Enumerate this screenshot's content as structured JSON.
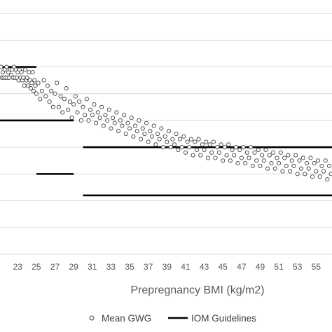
{
  "chart_data": {
    "type": "scatter",
    "xlabel": "Prepregnancy BMI (kg/m2)",
    "ylabel": "",
    "xlim": [
      21.1,
      56.7
    ],
    "ylim": [
      0,
      9.5
    ],
    "x_ticks": [
      23,
      25,
      27,
      29,
      31,
      33,
      35,
      37,
      39,
      41,
      43,
      45,
      47,
      49,
      51,
      53,
      55
    ],
    "y_gridlines": [
      1,
      2,
      3,
      4,
      5,
      6,
      7,
      8,
      9
    ],
    "grid": true,
    "legend_position": "bottom",
    "legend": [
      {
        "label": "Mean GWG",
        "marker": "open-circle"
      },
      {
        "label": "IOM Guidelines",
        "marker": "line"
      }
    ],
    "series": [
      {
        "name": "Mean GWG",
        "type": "scatter",
        "color": "#404040",
        "points": [
          [
            21.2,
            7.0
          ],
          [
            21.3,
            6.6
          ],
          [
            21.4,
            6.8
          ],
          [
            21.5,
            6.6
          ],
          [
            21.6,
            6.9
          ],
          [
            21.7,
            6.6
          ],
          [
            21.8,
            7.0
          ],
          [
            21.9,
            6.6
          ],
          [
            22.0,
            6.8
          ],
          [
            22.1,
            6.6
          ],
          [
            22.2,
            6.9
          ],
          [
            22.3,
            6.7
          ],
          [
            22.4,
            6.9
          ],
          [
            22.5,
            6.6
          ],
          [
            22.6,
            7.0
          ],
          [
            22.7,
            6.6
          ],
          [
            22.8,
            6.9
          ],
          [
            22.9,
            6.6
          ],
          [
            23.0,
            6.8
          ],
          [
            23.1,
            6.5
          ],
          [
            23.2,
            6.9
          ],
          [
            23.3,
            6.6
          ],
          [
            23.4,
            6.8
          ],
          [
            23.5,
            6.5
          ],
          [
            23.6,
            6.6
          ],
          [
            23.7,
            6.3
          ],
          [
            23.8,
            6.9
          ],
          [
            23.9,
            6.5
          ],
          [
            24.0,
            6.6
          ],
          [
            24.1,
            6.3
          ],
          [
            24.2,
            6.8
          ],
          [
            24.3,
            6.5
          ],
          [
            24.4,
            6.2
          ],
          [
            24.5,
            6.4
          ],
          [
            24.6,
            6.8
          ],
          [
            24.7,
            6.1
          ],
          [
            24.8,
            6.5
          ],
          [
            24.9,
            6.3
          ],
          [
            25.0,
            6.0
          ],
          [
            25.2,
            6.4
          ],
          [
            25.4,
            5.8
          ],
          [
            25.6,
            6.1
          ],
          [
            25.8,
            6.5
          ],
          [
            26.0,
            5.9
          ],
          [
            26.2,
            6.3
          ],
          [
            26.4,
            5.7
          ],
          [
            26.6,
            6.1
          ],
          [
            26.8,
            5.5
          ],
          [
            27.0,
            6.0
          ],
          [
            27.2,
            6.4
          ],
          [
            27.4,
            5.5
          ],
          [
            27.6,
            5.9
          ],
          [
            27.8,
            5.3
          ],
          [
            28.0,
            5.8
          ],
          [
            28.2,
            6.2
          ],
          [
            28.4,
            5.4
          ],
          [
            28.6,
            5.7
          ],
          [
            28.8,
            5.1
          ],
          [
            29.0,
            5.6
          ],
          [
            29.2,
            5.9
          ],
          [
            29.4,
            5.3
          ],
          [
            29.6,
            5.7
          ],
          [
            29.8,
            5.0
          ],
          [
            30.0,
            5.5
          ],
          [
            30.2,
            5.2
          ],
          [
            30.4,
            5.8
          ],
          [
            30.6,
            5.0
          ],
          [
            30.8,
            5.4
          ],
          [
            31.0,
            5.2
          ],
          [
            31.2,
            5.6
          ],
          [
            31.4,
            4.9
          ],
          [
            31.6,
            5.3
          ],
          [
            31.8,
            5.1
          ],
          [
            32.0,
            5.5
          ],
          [
            32.2,
            4.8
          ],
          [
            32.4,
            5.2
          ],
          [
            32.6,
            5.0
          ],
          [
            32.8,
            5.4
          ],
          [
            33.0,
            4.7
          ],
          [
            33.2,
            5.1
          ],
          [
            33.4,
            4.9
          ],
          [
            33.6,
            5.3
          ],
          [
            33.8,
            4.6
          ],
          [
            34.0,
            5.0
          ],
          [
            34.2,
            4.8
          ],
          [
            34.4,
            5.2
          ],
          [
            34.6,
            4.5
          ],
          [
            34.8,
            4.9
          ],
          [
            35.0,
            4.7
          ],
          [
            35.2,
            5.1
          ],
          [
            35.4,
            4.4
          ],
          [
            35.6,
            4.8
          ],
          [
            35.8,
            4.6
          ],
          [
            36.0,
            5.0
          ],
          [
            36.2,
            4.3
          ],
          [
            36.4,
            4.7
          ],
          [
            36.6,
            4.5
          ],
          [
            36.8,
            4.9
          ],
          [
            37.0,
            4.2
          ],
          [
            37.2,
            4.6
          ],
          [
            37.4,
            4.4
          ],
          [
            37.6,
            4.8
          ],
          [
            37.8,
            4.1
          ],
          [
            38.0,
            4.5
          ],
          [
            38.2,
            4.3
          ],
          [
            38.4,
            4.7
          ],
          [
            38.6,
            4.0
          ],
          [
            38.8,
            4.4
          ],
          [
            39.0,
            4.2
          ],
          [
            39.2,
            4.6
          ],
          [
            39.4,
            4.0
          ],
          [
            39.6,
            4.3
          ],
          [
            39.8,
            4.1
          ],
          [
            40.0,
            4.5
          ],
          [
            40.2,
            3.9
          ],
          [
            40.4,
            4.3
          ],
          [
            40.6,
            4.0
          ],
          [
            40.8,
            4.4
          ],
          [
            41.0,
            3.8
          ],
          [
            41.2,
            4.2
          ],
          [
            41.4,
            4.0
          ],
          [
            41.6,
            4.3
          ],
          [
            41.8,
            3.7
          ],
          [
            42.0,
            4.2
          ],
          [
            42.2,
            3.9
          ],
          [
            42.4,
            4.3
          ],
          [
            42.6,
            3.7
          ],
          [
            42.8,
            4.1
          ],
          [
            43.0,
            3.9
          ],
          [
            43.2,
            4.2
          ],
          [
            43.4,
            3.6
          ],
          [
            43.6,
            4.1
          ],
          [
            43.8,
            3.8
          ],
          [
            44.0,
            4.2
          ],
          [
            44.2,
            3.6
          ],
          [
            44.4,
            4.0
          ],
          [
            44.6,
            3.8
          ],
          [
            44.8,
            4.1
          ],
          [
            45.0,
            3.5
          ],
          [
            45.2,
            4.0
          ],
          [
            45.4,
            3.7
          ],
          [
            45.6,
            4.1
          ],
          [
            45.8,
            3.5
          ],
          [
            46.0,
            3.9
          ],
          [
            46.2,
            3.7
          ],
          [
            46.4,
            4.0
          ],
          [
            46.6,
            3.4
          ],
          [
            46.8,
            3.9
          ],
          [
            47.0,
            3.6
          ],
          [
            47.2,
            4.0
          ],
          [
            47.4,
            3.4
          ],
          [
            47.6,
            3.8
          ],
          [
            47.8,
            3.6
          ],
          [
            48.0,
            4.0
          ],
          [
            48.2,
            3.3
          ],
          [
            48.4,
            3.8
          ],
          [
            48.6,
            3.5
          ],
          [
            48.8,
            3.9
          ],
          [
            49.0,
            3.3
          ],
          [
            49.2,
            3.7
          ],
          [
            49.4,
            3.5
          ],
          [
            49.6,
            3.9
          ],
          [
            49.8,
            3.2
          ],
          [
            50.0,
            3.7
          ],
          [
            50.2,
            3.4
          ],
          [
            50.4,
            3.8
          ],
          [
            50.6,
            3.2
          ],
          [
            50.8,
            3.6
          ],
          [
            51.0,
            3.4
          ],
          [
            51.2,
            3.8
          ],
          [
            51.4,
            3.1
          ],
          [
            51.6,
            3.6
          ],
          [
            51.8,
            3.3
          ],
          [
            52.0,
            3.7
          ],
          [
            52.2,
            3.1
          ],
          [
            52.4,
            3.5
          ],
          [
            52.6,
            3.3
          ],
          [
            52.8,
            3.7
          ],
          [
            53.0,
            3.0
          ],
          [
            53.2,
            3.5
          ],
          [
            53.4,
            3.2
          ],
          [
            53.6,
            3.6
          ],
          [
            53.8,
            3.0
          ],
          [
            54.0,
            3.4
          ],
          [
            54.2,
            3.2
          ],
          [
            54.4,
            3.6
          ],
          [
            54.6,
            2.9
          ],
          [
            54.8,
            3.4
          ],
          [
            55.0,
            3.1
          ],
          [
            55.2,
            3.5
          ],
          [
            55.4,
            2.9
          ],
          [
            55.6,
            3.3
          ],
          [
            55.8,
            3.1
          ],
          [
            56.0,
            3.5
          ],
          [
            56.2,
            2.8
          ],
          [
            56.4,
            3.3
          ],
          [
            56.6,
            3.0
          ]
        ]
      },
      {
        "name": "IOM Guidelines",
        "type": "segments",
        "color": "#000000",
        "segments": [
          {
            "x": [
              21.1,
              25.0
            ],
            "y": [
              7.0,
              7.0
            ]
          },
          {
            "x": [
              21.1,
              29.0
            ],
            "y": [
              5.0,
              5.0
            ]
          },
          {
            "x": [
              30.0,
              56.7
            ],
            "y": [
              4.0,
              4.0
            ]
          },
          {
            "x": [
              25.0,
              29.0
            ],
            "y": [
              3.0,
              3.0
            ]
          },
          {
            "x": [
              30.0,
              56.7
            ],
            "y": [
              2.2,
              2.2
            ]
          }
        ]
      }
    ]
  }
}
